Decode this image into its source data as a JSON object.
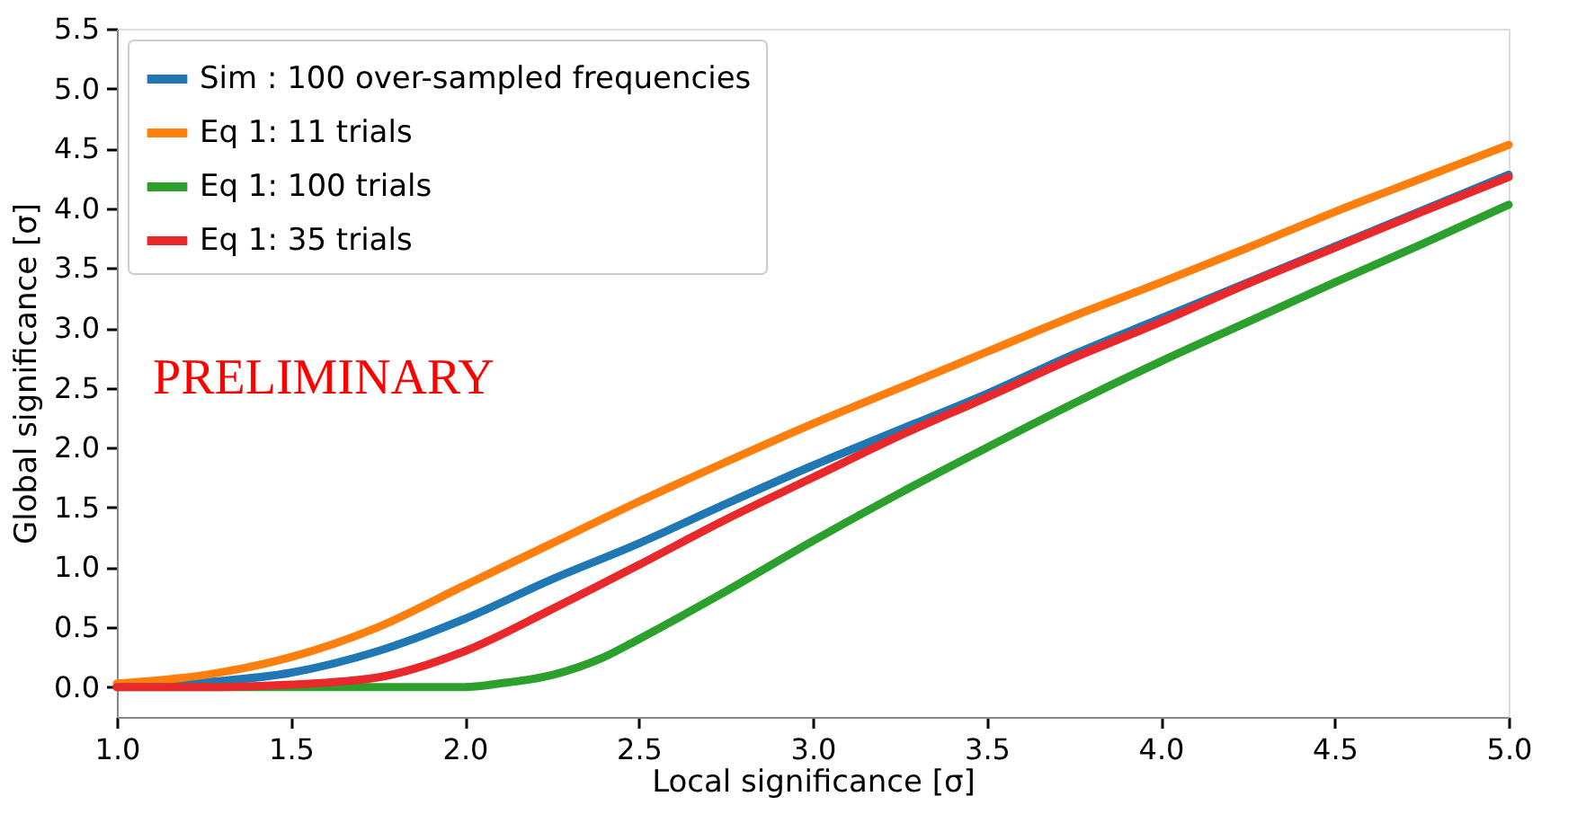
{
  "chart_data": {
    "type": "line",
    "xlabel": "Local significance [σ]",
    "ylabel": "Global significance [σ]",
    "xlim": [
      1.0,
      5.0
    ],
    "xticks": [
      {
        "value": 1,
        "label": "1.0"
      },
      1.5,
      {
        "value": 2,
        "label": "2.0"
      },
      2.5,
      {
        "value": 3,
        "label": "3.0"
      },
      3.5,
      {
        "value": 4,
        "label": "4.0"
      },
      4.5,
      {
        "value": 5,
        "label": "5.0"
      }
    ],
    "ylim": [
      -0.25,
      5.5
    ],
    "yticks": [
      {
        "value": 0,
        "label": "0.0"
      },
      0.5,
      {
        "value": 1,
        "label": "1.0"
      },
      1.5,
      {
        "value": 2,
        "label": "2.0"
      },
      2.5,
      {
        "value": 3,
        "label": "3.0"
      },
      3.5,
      {
        "value": 4,
        "label": "4.0"
      },
      4.5,
      {
        "value": 5,
        "label": "5.0"
      },
      5.5
    ],
    "grid": false,
    "legend": "top left",
    "marker": "none",
    "line_style": "solid",
    "annotations": [
      "PRELIMINARY"
    ],
    "series": [
      {
        "name": "Sim : 100 over-sampled frequencies",
        "color": "#1f77b4",
        "x": [
          1.0,
          1.25,
          1.5,
          1.75,
          2.0,
          2.25,
          2.5,
          2.75,
          3.0,
          3.25,
          3.5,
          3.75,
          4.0,
          4.25,
          4.5,
          4.75,
          5.0
        ],
        "values": [
          0.01,
          0.04,
          0.12,
          0.3,
          0.57,
          0.9,
          1.2,
          1.53,
          1.85,
          2.15,
          2.45,
          2.78,
          3.08,
          3.38,
          3.68,
          3.98,
          4.28
        ]
      },
      {
        "name": "Eq 1: 11 trials",
        "color": "#ff7f0e",
        "x": [
          1.0,
          1.25,
          1.5,
          1.75,
          2.0,
          2.25,
          2.5,
          2.75,
          3.0,
          3.25,
          3.5,
          3.75,
          4.0,
          4.25,
          4.5,
          4.75,
          5.0
        ],
        "values": [
          0.03,
          0.1,
          0.25,
          0.5,
          0.85,
          1.2,
          1.55,
          1.88,
          2.2,
          2.5,
          2.8,
          3.1,
          3.38,
          3.67,
          3.97,
          4.25,
          4.53
        ]
      },
      {
        "name": "Eq 1: 100 trials",
        "color": "#2ca02c",
        "x": [
          1.0,
          1.25,
          1.5,
          1.75,
          2.0,
          2.1,
          2.25,
          2.4,
          2.5,
          2.75,
          3.0,
          3.25,
          3.5,
          3.75,
          4.0,
          4.25,
          4.5,
          4.75,
          5.0
        ],
        "values": [
          0.0,
          0.0,
          0.0,
          0.0,
          0.0,
          0.03,
          0.1,
          0.25,
          0.4,
          0.8,
          1.22,
          1.62,
          2.0,
          2.37,
          2.72,
          3.05,
          3.38,
          3.7,
          4.03
        ]
      },
      {
        "name": "Eq 1: 35 trials",
        "color": "#e8282b",
        "x": [
          1.0,
          1.25,
          1.5,
          1.75,
          2.0,
          2.25,
          2.5,
          2.75,
          3.0,
          3.25,
          3.5,
          3.75,
          4.0,
          4.25,
          4.5,
          4.75,
          5.0
        ],
        "values": [
          0.0,
          0.0,
          0.02,
          0.08,
          0.3,
          0.65,
          1.02,
          1.4,
          1.75,
          2.1,
          2.42,
          2.75,
          3.05,
          3.37,
          3.67,
          3.97,
          4.26
        ]
      }
    ]
  }
}
